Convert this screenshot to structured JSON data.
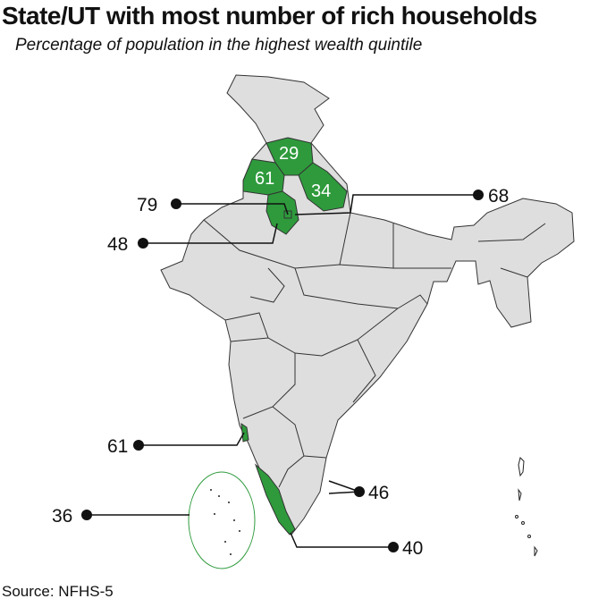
{
  "title": "State/UT with most number of rich households",
  "subtitle": "Percentage of population in the highest wealth quintile",
  "source": "Source: NFHS-5",
  "colors": {
    "highlight": "#2e9a3c",
    "base": "#dedede",
    "border": "#333333",
    "callout": "#111111"
  },
  "regions": [
    {
      "id": "himachal-pradesh",
      "value": "29"
    },
    {
      "id": "punjab",
      "value": "61"
    },
    {
      "id": "uttarakhand",
      "value": "34"
    },
    {
      "id": "delhi",
      "value": "79"
    },
    {
      "id": "chandigarh",
      "value": "68"
    },
    {
      "id": "haryana",
      "value": "48"
    },
    {
      "id": "goa",
      "value": "61"
    },
    {
      "id": "puducherry",
      "value": "46"
    },
    {
      "id": "lakshadweep",
      "value": "36"
    },
    {
      "id": "kerala",
      "value": "40"
    }
  ]
}
